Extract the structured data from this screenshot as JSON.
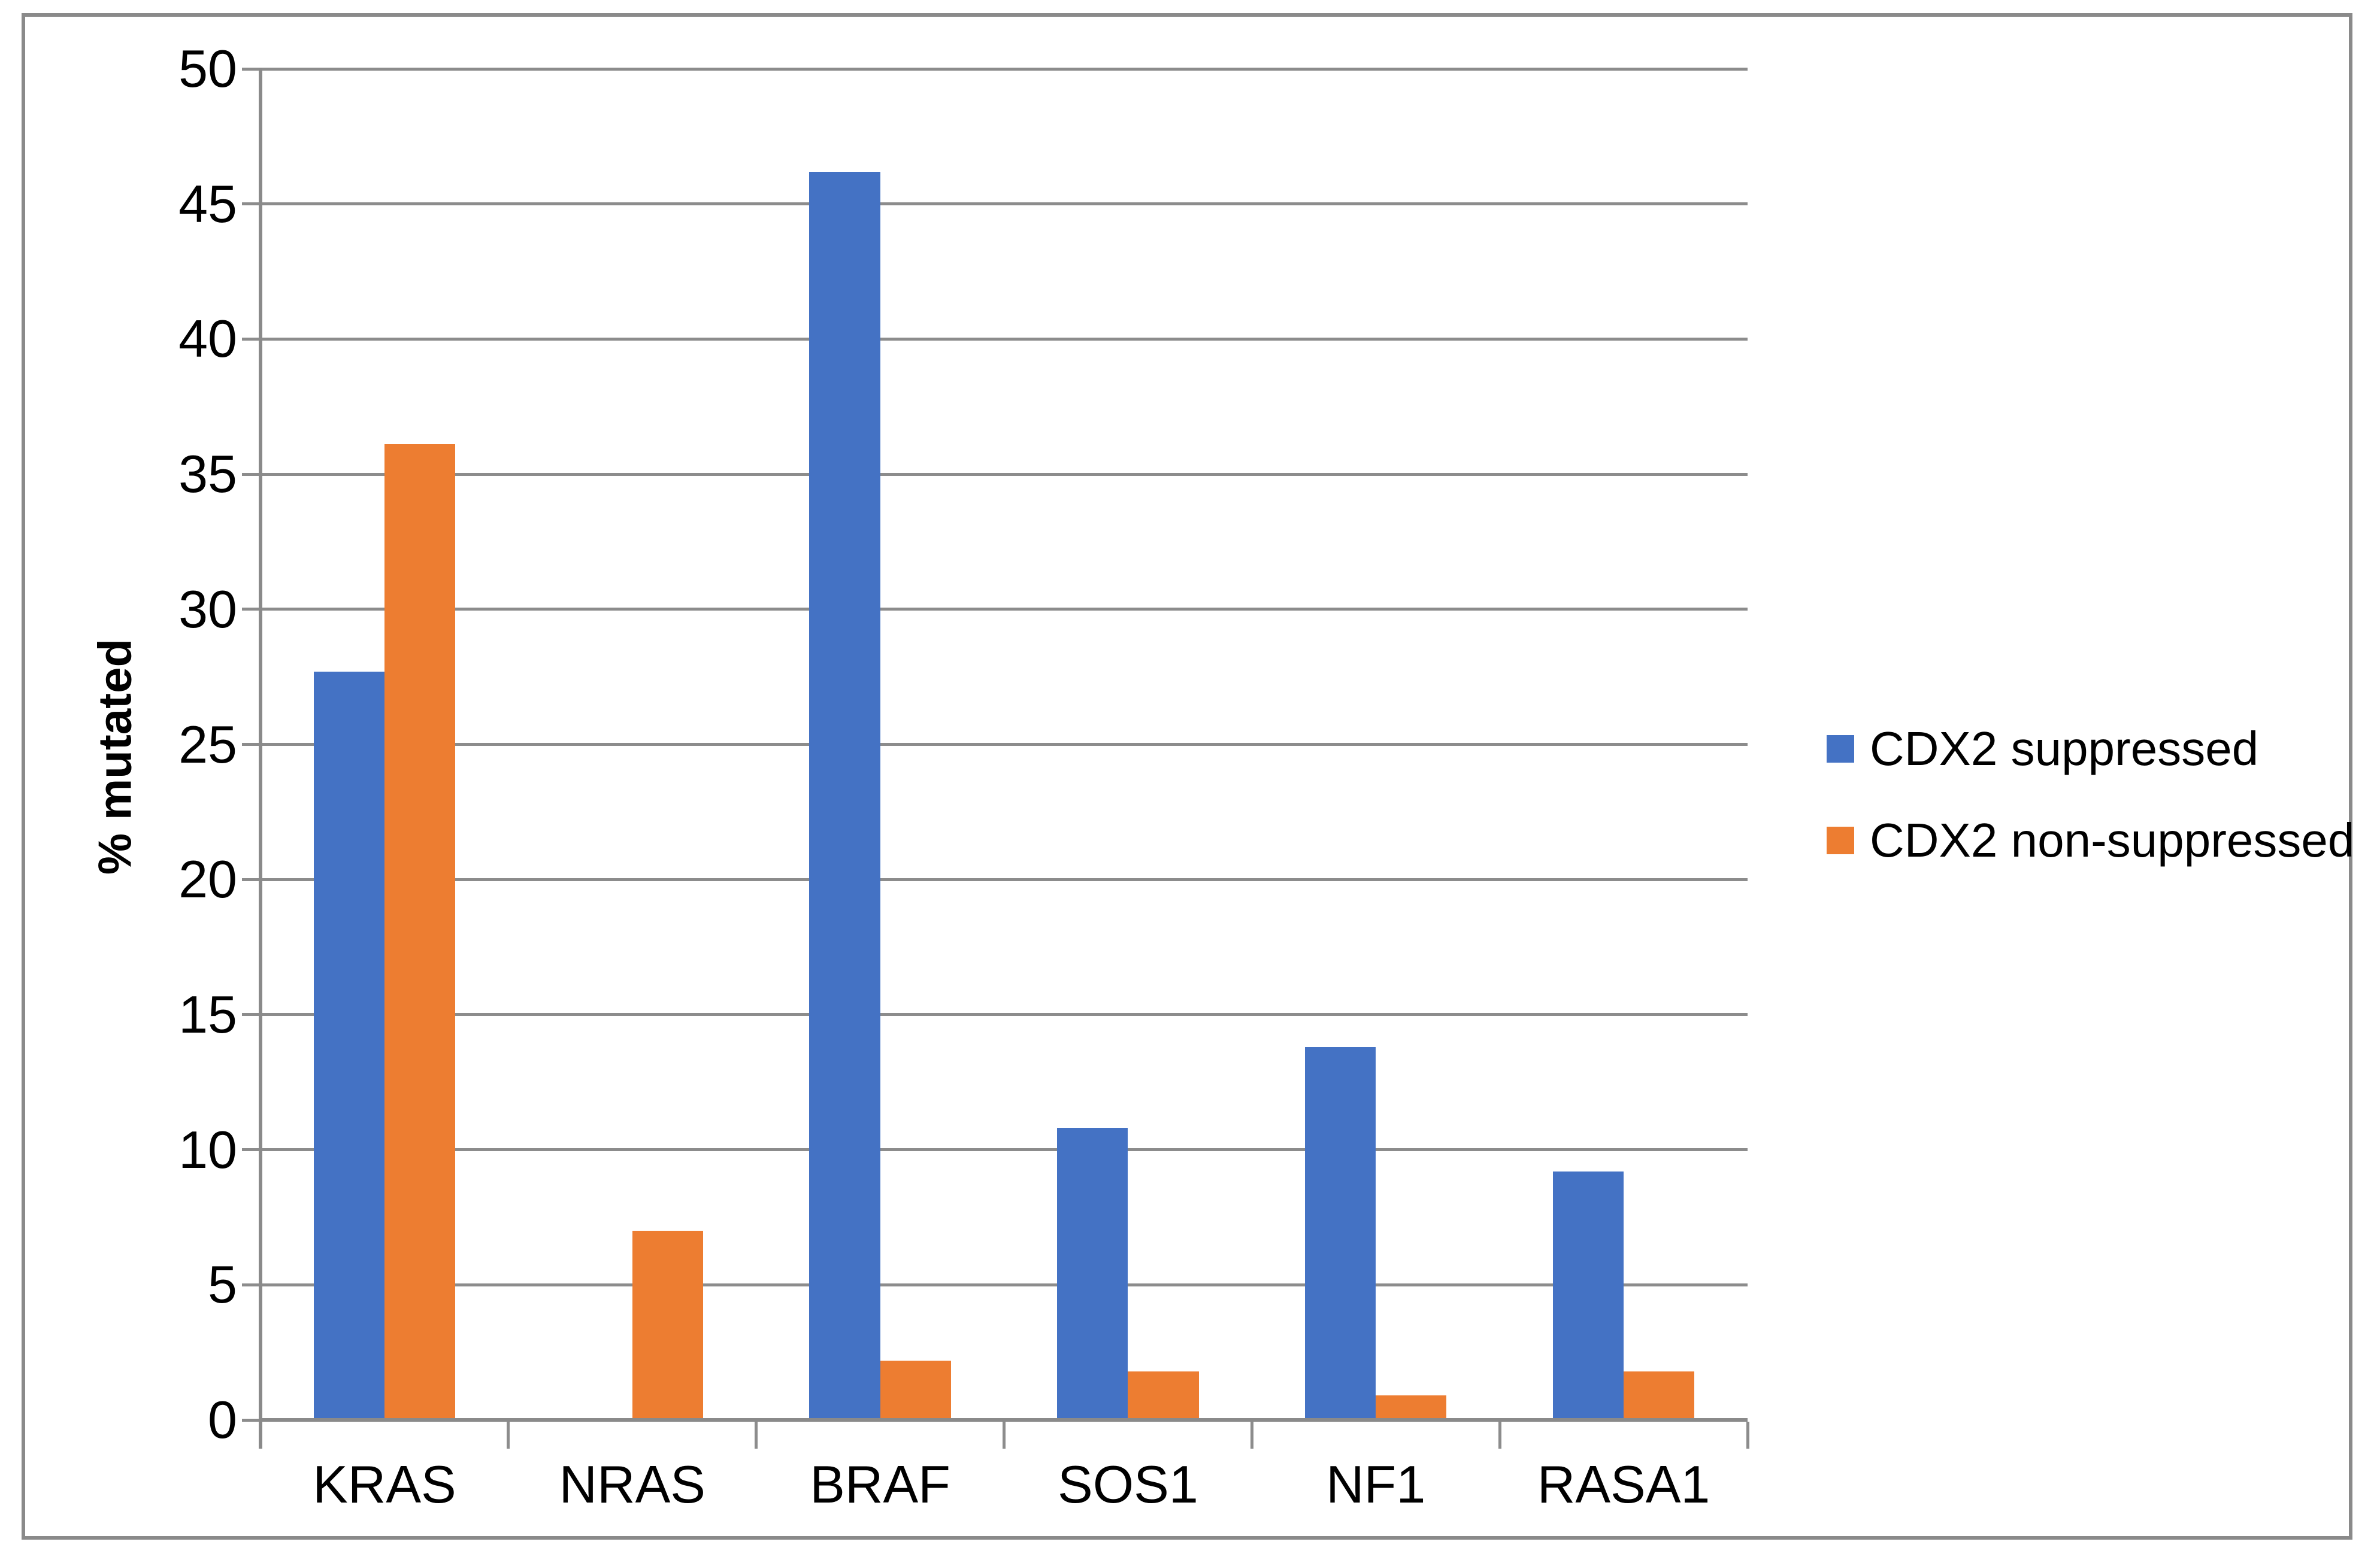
{
  "chart_data": {
    "type": "bar",
    "categories": [
      "KRAS",
      "NRAS",
      "BRAF",
      "SOS1",
      "NF1",
      "RASA1"
    ],
    "series": [
      {
        "name": "CDX2 suppressed",
        "color": "#4472C4",
        "values": [
          27.7,
          0,
          46.2,
          10.8,
          13.8,
          9.2
        ]
      },
      {
        "name": "CDX2 non-suppressed",
        "color": "#ED7D31",
        "values": [
          36.1,
          7,
          2.2,
          1.8,
          0.9,
          1.8
        ]
      }
    ],
    "ylabel": "% mutated",
    "ylim": [
      0,
      50
    ],
    "ytick_step": 5,
    "yticks": [
      0,
      5,
      10,
      15,
      20,
      25,
      30,
      35,
      40,
      45,
      50
    ],
    "grid": true,
    "legend_position": "right-middle",
    "colors": {
      "gridline": "#8C8C8C",
      "axis": "#8A8A8A",
      "figure_border": "#8A8A8A",
      "background": "#FFFFFF",
      "text": "#000000"
    }
  }
}
